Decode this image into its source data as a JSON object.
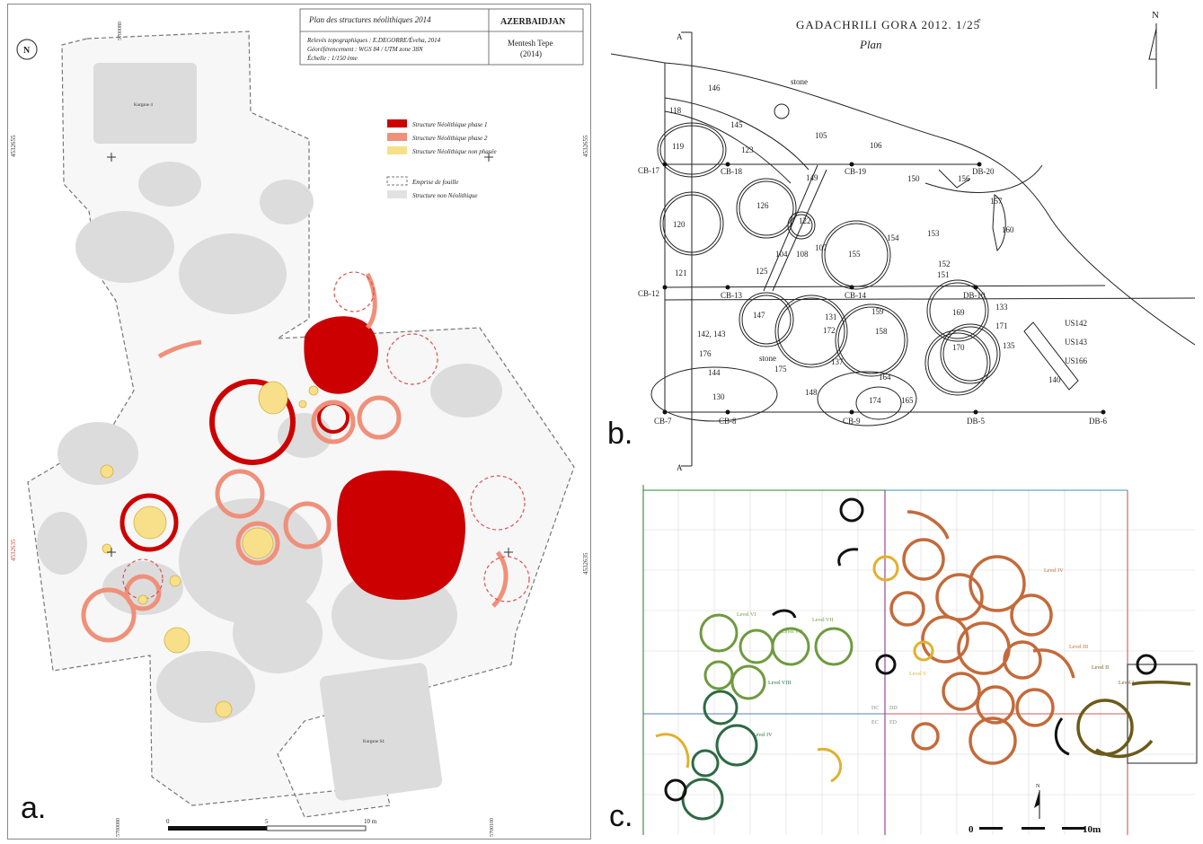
{
  "panel_a": {
    "label": "a.",
    "title": "Plan des structures néolithiques 2014",
    "country": "AZERBAIDJAN",
    "credits": [
      "Relevés topographiques : E.DEGORRE/Éveha, 2014",
      "Géoréférencement : WGS 84 / UTM zone 38N",
      "Échelle : 1/150 ème"
    ],
    "site": "Mentesh Tepe",
    "year": "(2014)",
    "north": "N",
    "legend": [
      {
        "label": "Structure Néolithique phase 1",
        "color": "#cc0000"
      },
      {
        "label": "Structure Néolithique phase 2",
        "color": "#f0907a"
      },
      {
        "label": "Structure Néolithique non phasée",
        "color": "#f8e08a"
      },
      {
        "label": "Emprise de fouille",
        "color": "#777777"
      },
      {
        "label": "Structure non Néolithique",
        "color": "#e2e2e2"
      }
    ],
    "coords": {
      "left_top": "4532655",
      "left_mid": "4532635",
      "right_top": "4532655",
      "right_mid": "4532635",
      "top": "5700080",
      "bottom_left": "5700080",
      "bottom_right": "5700100"
    },
    "scale": [
      "0",
      "5",
      "10 m"
    ],
    "features": [
      "Kurgane 4",
      "Kurgane S4"
    ]
  },
  "panel_b": {
    "label": "b.",
    "title": "GADACHRILI  GORA  2012.  1/25",
    "title_sup": "e",
    "subtitle": "Plan",
    "north": "N",
    "section_labels": [
      "A",
      "A"
    ],
    "points": [
      "CB-17",
      "CB-18",
      "CB-19",
      "DB-20",
      "CB-12",
      "CB-13",
      "CB-14",
      "DB-10",
      "CB-7",
      "CB-8",
      "CB-9",
      "DB-5",
      "DB-6"
    ],
    "numbers": [
      "146",
      "118",
      "145",
      "119",
      "123",
      "105",
      "106",
      "149",
      "150",
      "156",
      "157",
      "126",
      "122",
      "120",
      "104",
      "108",
      "107",
      "155",
      "154",
      "153",
      "160",
      "121",
      "125",
      "152",
      "151",
      "147",
      "131",
      "172",
      "159",
      "158",
      "169",
      "133",
      "171",
      "176",
      "144",
      "137",
      "170",
      "135",
      "130",
      "148",
      "164",
      "174",
      "165",
      "140",
      "175"
    ],
    "text_labels": [
      "stone",
      "stone",
      "142, 143",
      "US142",
      "US143",
      "US166"
    ]
  },
  "panel_c": {
    "label": "c.",
    "levels": [
      "Level VI",
      "Level VII",
      "Level VIII",
      "Level VII",
      "Level IV",
      "Level V",
      "Level III",
      "Level II",
      "Level I",
      "Level IV"
    ],
    "grid_labels": [
      "DC",
      "DD",
      "EC",
      "ED"
    ],
    "scale": [
      "0",
      "10m"
    ],
    "north": "N"
  }
}
